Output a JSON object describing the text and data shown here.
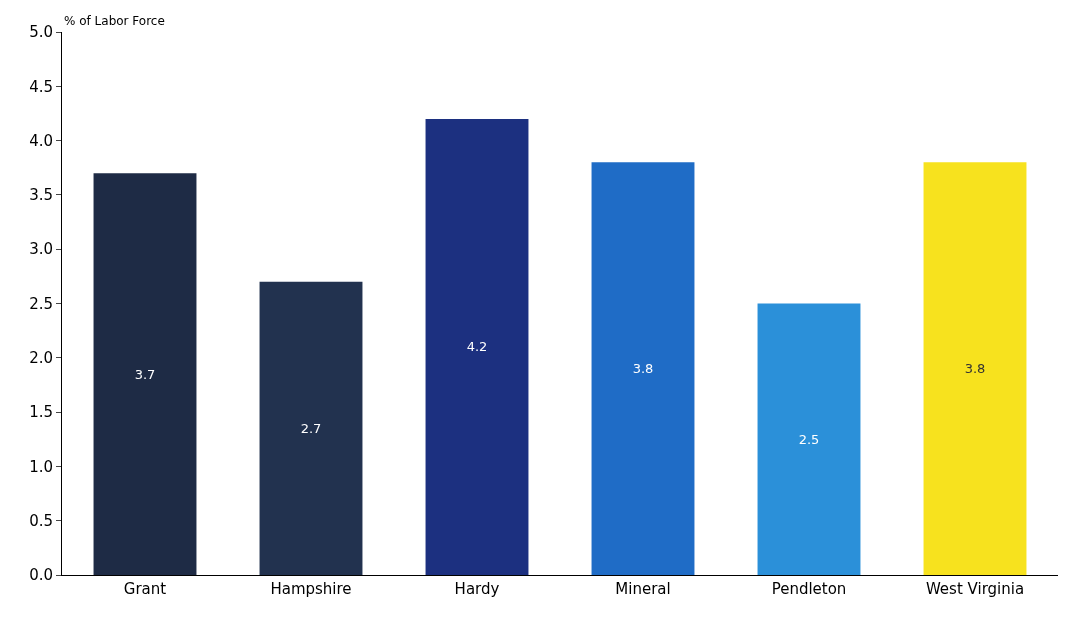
{
  "chart_data": {
    "type": "bar",
    "ylabel": "% of Labor Force",
    "categories": [
      "Grant",
      "Hampshire",
      "Hardy",
      "Mineral",
      "Pendleton",
      "West Virginia"
    ],
    "values": [
      3.7,
      2.7,
      4.2,
      3.8,
      2.5,
      3.8
    ],
    "colors": [
      "#1e2b45",
      "#22324f",
      "#1c3080",
      "#1f6cc6",
      "#2b90d9",
      "#f7e21e"
    ],
    "ylim": [
      0,
      5
    ],
    "yticks": [
      {
        "value": 0,
        "label": "0.0"
      },
      {
        "value": 0.5,
        "label": "0.5"
      },
      {
        "value": 1,
        "label": "1.0"
      },
      {
        "value": 1.5,
        "label": "1.5"
      },
      {
        "value": 2,
        "label": "2.0"
      },
      {
        "value": 2.5,
        "label": "2.5"
      },
      {
        "value": 3,
        "label": "3.0"
      },
      {
        "value": 3.5,
        "label": "3.5"
      },
      {
        "value": 4,
        "label": "4.0"
      },
      {
        "value": 4.5,
        "label": "4.5"
      },
      {
        "value": 5,
        "label": "5.0"
      }
    ],
    "grid": false,
    "data_labels": true
  }
}
